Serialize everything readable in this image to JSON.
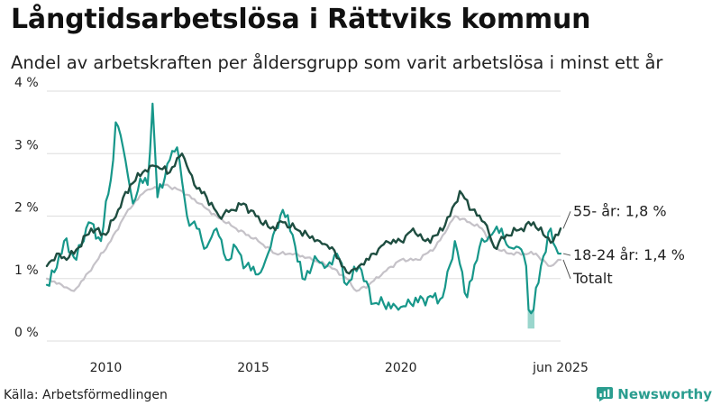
{
  "header": {
    "title": "Långtidsarbetslösa i Rättviks kommun",
    "subtitle": "Andel av arbetskraften per åldersgrupp som varit arbetslösa i minst ett år"
  },
  "footer": {
    "source": "Källa: Arbetsförmedlingen",
    "brand": "Newsworthy"
  },
  "colors": {
    "s55": "#1e4d40",
    "s1824": "#17978a",
    "total": "#c5c2c8",
    "brand": "#2a9d8f",
    "grid": "#dddddd"
  },
  "chart_data": {
    "type": "line",
    "title": "Långtidsarbetslösa i Rättviks kommun",
    "subtitle": "Andel av arbetskraften per åldersgrupp som varit arbetslösa i minst ett år",
    "y_unit": "%",
    "ylim": [
      0,
      4
    ],
    "y_ticks": [
      0,
      1,
      2,
      3,
      4
    ],
    "y_tick_labels": [
      "0 %",
      "1 %",
      "2 %",
      "3 %",
      "4 %"
    ],
    "x_range": [
      "2008-01",
      "2025-06"
    ],
    "x_ticks": [
      "2010-01",
      "2015-01",
      "2020-01",
      "2025-06"
    ],
    "x_tick_labels": [
      "2010",
      "2015",
      "2020",
      "jun 2025"
    ],
    "grid": "horizontal",
    "series": [
      {
        "name": "Totalt",
        "end_label": "Totalt",
        "keypoints": [
          [
            "2008-01",
            1.0
          ],
          [
            "2008-07",
            0.9
          ],
          [
            "2008-12",
            0.8
          ],
          [
            "2009-06",
            1.1
          ],
          [
            "2010-03",
            1.6
          ],
          [
            "2010-10",
            2.1
          ],
          [
            "2011-05",
            2.4
          ],
          [
            "2012-01",
            2.5
          ],
          [
            "2012-08",
            2.4
          ],
          [
            "2013-03",
            2.2
          ],
          [
            "2013-10",
            2.0
          ],
          [
            "2014-06",
            1.8
          ],
          [
            "2015-03",
            1.6
          ],
          [
            "2015-10",
            1.4
          ],
          [
            "2016-06",
            1.4
          ],
          [
            "2017-01",
            1.3
          ],
          [
            "2017-08",
            1.2
          ],
          [
            "2018-03",
            1.0
          ],
          [
            "2018-07",
            0.8
          ],
          [
            "2018-12",
            0.9
          ],
          [
            "2019-06",
            1.1
          ],
          [
            "2020-01",
            1.3
          ],
          [
            "2020-08",
            1.3
          ],
          [
            "2021-03",
            1.5
          ],
          [
            "2021-08",
            1.8
          ],
          [
            "2021-11",
            2.0
          ],
          [
            "2022-05",
            1.9
          ],
          [
            "2022-10",
            1.8
          ],
          [
            "2023-03",
            1.5
          ],
          [
            "2023-09",
            1.4
          ],
          [
            "2024-03",
            1.4
          ],
          [
            "2024-08",
            1.4
          ],
          [
            "2024-10",
            1.3
          ],
          [
            "2025-02",
            1.2
          ],
          [
            "2025-06",
            1.3
          ]
        ]
      },
      {
        "name": "18-24 år",
        "end_label": "18-24 år: 1,4 %",
        "keypoints": [
          [
            "2008-01",
            0.9
          ],
          [
            "2008-04",
            1.1
          ],
          [
            "2008-08",
            1.6
          ],
          [
            "2009-01",
            1.3
          ],
          [
            "2009-06",
            1.9
          ],
          [
            "2009-11",
            1.6
          ],
          [
            "2010-04",
            2.9
          ],
          [
            "2010-05",
            3.5
          ],
          [
            "2010-08",
            3.1
          ],
          [
            "2010-12",
            2.2
          ],
          [
            "2011-03",
            2.6
          ],
          [
            "2011-06",
            2.5
          ],
          [
            "2011-08",
            3.8
          ],
          [
            "2011-10",
            2.3
          ],
          [
            "2012-03",
            2.9
          ],
          [
            "2012-06",
            3.1
          ],
          [
            "2012-10",
            2.0
          ],
          [
            "2013-02",
            1.8
          ],
          [
            "2013-06",
            1.5
          ],
          [
            "2013-10",
            1.8
          ],
          [
            "2014-02",
            1.3
          ],
          [
            "2014-06",
            1.5
          ],
          [
            "2014-10",
            1.2
          ],
          [
            "2015-04",
            1.1
          ],
          [
            "2015-08",
            1.5
          ],
          [
            "2016-01",
            2.1
          ],
          [
            "2016-05",
            1.7
          ],
          [
            "2016-09",
            1.0
          ],
          [
            "2017-03",
            1.3
          ],
          [
            "2017-07",
            1.2
          ],
          [
            "2017-11",
            1.4
          ],
          [
            "2018-03",
            0.9
          ],
          [
            "2018-08",
            1.2
          ],
          [
            "2019-02",
            0.6
          ],
          [
            "2019-06",
            0.6
          ],
          [
            "2019-12",
            0.5
          ],
          [
            "2020-05",
            0.6
          ],
          [
            "2020-12",
            0.7
          ],
          [
            "2021-06",
            0.7
          ],
          [
            "2021-11",
            1.6
          ],
          [
            "2022-04",
            0.7
          ],
          [
            "2022-09",
            1.5
          ],
          [
            "2023-02",
            1.7
          ],
          [
            "2023-06",
            1.8
          ],
          [
            "2023-09",
            1.5
          ],
          [
            "2024-01",
            1.5
          ],
          [
            "2024-04",
            1.2
          ],
          [
            "2024-05",
            0.5
          ],
          [
            "2024-07",
            0.5
          ],
          [
            "2024-10",
            1.2
          ],
          [
            "2025-02",
            1.8
          ],
          [
            "2025-04",
            1.5
          ],
          [
            "2025-06",
            1.4
          ]
        ]
      },
      {
        "name": "55- år",
        "end_label": "55- år: 1,8 %",
        "keypoints": [
          [
            "2008-01",
            1.2
          ],
          [
            "2008-05",
            1.4
          ],
          [
            "2008-09",
            1.3
          ],
          [
            "2009-02",
            1.5
          ],
          [
            "2009-07",
            1.8
          ],
          [
            "2010-01",
            1.7
          ],
          [
            "2010-06",
            2.1
          ],
          [
            "2010-11",
            2.5
          ],
          [
            "2011-04",
            2.7
          ],
          [
            "2011-09",
            2.8
          ],
          [
            "2012-03",
            2.7
          ],
          [
            "2012-08",
            3.0
          ],
          [
            "2013-01",
            2.5
          ],
          [
            "2013-06",
            2.3
          ],
          [
            "2013-11",
            2.0
          ],
          [
            "2014-04",
            2.1
          ],
          [
            "2014-09",
            2.2
          ],
          [
            "2015-02",
            2.0
          ],
          [
            "2015-08",
            1.8
          ],
          [
            "2016-01",
            1.9
          ],
          [
            "2016-06",
            1.8
          ],
          [
            "2016-11",
            1.7
          ],
          [
            "2017-04",
            1.6
          ],
          [
            "2017-09",
            1.5
          ],
          [
            "2018-03",
            1.1
          ],
          [
            "2018-08",
            1.2
          ],
          [
            "2019-02",
            1.4
          ],
          [
            "2019-07",
            1.6
          ],
          [
            "2020-01",
            1.6
          ],
          [
            "2020-06",
            1.8
          ],
          [
            "2020-11",
            1.6
          ],
          [
            "2021-04",
            1.7
          ],
          [
            "2021-09",
            2.0
          ],
          [
            "2022-01",
            2.4
          ],
          [
            "2022-06",
            2.1
          ],
          [
            "2022-11",
            1.9
          ],
          [
            "2023-03",
            1.5
          ],
          [
            "2023-08",
            1.7
          ],
          [
            "2024-02",
            1.8
          ],
          [
            "2024-07",
            1.9
          ],
          [
            "2024-11",
            1.7
          ],
          [
            "2025-03",
            1.6
          ],
          [
            "2025-06",
            1.8
          ]
        ]
      }
    ]
  }
}
